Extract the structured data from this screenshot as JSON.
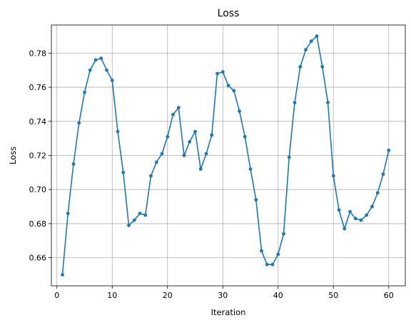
{
  "chart_data": {
    "type": "line",
    "title": "Loss",
    "xlabel": "Iteration",
    "ylabel": "Loss",
    "xlim": [
      -1,
      63
    ],
    "ylim": [
      0.6435,
      0.7965
    ],
    "xticks": [
      0,
      10,
      20,
      30,
      40,
      50,
      60
    ],
    "xtick_labels": [
      "0",
      "10",
      "20",
      "30",
      "40",
      "50",
      "60"
    ],
    "yticks": [
      0.66,
      0.68,
      0.7,
      0.72,
      0.74,
      0.76,
      0.78
    ],
    "ytick_labels": [
      "0.66",
      "0.68",
      "0.70",
      "0.72",
      "0.74",
      "0.76",
      "0.78"
    ],
    "grid": true,
    "line_color": "#1f77b4",
    "marker": "circle",
    "x": [
      1,
      2,
      3,
      4,
      5,
      6,
      7,
      8,
      9,
      10,
      11,
      12,
      13,
      14,
      15,
      16,
      17,
      18,
      19,
      20,
      21,
      22,
      23,
      24,
      25,
      26,
      27,
      28,
      29,
      30,
      31,
      32,
      33,
      34,
      35,
      36,
      37,
      38,
      39,
      40,
      41,
      42,
      43,
      44,
      45,
      46,
      47,
      48,
      49,
      50,
      51,
      52,
      53,
      54,
      55,
      56,
      57,
      58,
      59,
      60
    ],
    "y": [
      0.65,
      0.686,
      0.715,
      0.739,
      0.757,
      0.77,
      0.776,
      0.777,
      0.77,
      0.764,
      0.734,
      0.71,
      0.679,
      0.682,
      0.686,
      0.685,
      0.708,
      0.716,
      0.721,
      0.731,
      0.744,
      0.748,
      0.72,
      0.728,
      0.734,
      0.712,
      0.721,
      0.732,
      0.768,
      0.769,
      0.761,
      0.758,
      0.746,
      0.731,
      0.712,
      0.694,
      0.664,
      0.656,
      0.656,
      0.662,
      0.674,
      0.719,
      0.751,
      0.772,
      0.782,
      0.787,
      0.79,
      0.772,
      0.751,
      0.708,
      0.688,
      0.677,
      0.687,
      0.683,
      0.682,
      0.685,
      0.69,
      0.698,
      0.709,
      0.723
    ]
  }
}
